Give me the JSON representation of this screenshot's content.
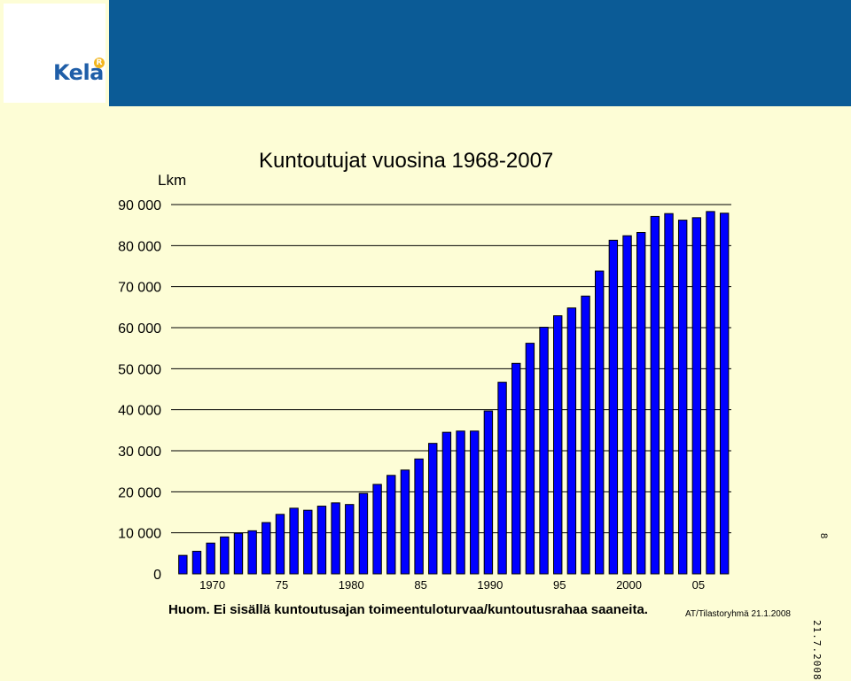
{
  "brand": {
    "logo_text": "Kela",
    "logo_mark": "R"
  },
  "colors": {
    "header_band": "#0b5b96",
    "background": "#fdfdd6",
    "bar_fill": "#0000ff",
    "bar_stroke": "#000000"
  },
  "footnote": "Huom. Ei sisällä kuntoutusajan toimeentuloturvaa/kuntoutusrahaa saaneita.",
  "credit": "AT/Tilastoryhmä 21.1.2008",
  "side_stamp": {
    "date": "21.7.2008",
    "page": "8"
  },
  "chart_data": {
    "type": "bar",
    "title": "Kuntoutujat vuosina 1968-2007",
    "ylabel": "Lkm",
    "xlabel": "",
    "ylim": [
      0,
      90000
    ],
    "yticks": [
      0,
      10000,
      20000,
      30000,
      40000,
      50000,
      60000,
      70000,
      80000,
      90000
    ],
    "ytick_labels": [
      "0",
      "10 000",
      "20 000",
      "30 000",
      "40 000",
      "50 000",
      "60 000",
      "70 000",
      "80 000",
      "90 000"
    ],
    "grid": true,
    "categories": [
      1968,
      1969,
      1970,
      1971,
      1972,
      1973,
      1974,
      1975,
      1976,
      1977,
      1978,
      1979,
      1980,
      1981,
      1982,
      1983,
      1984,
      1985,
      1986,
      1987,
      1988,
      1989,
      1990,
      1991,
      1992,
      1993,
      1994,
      1995,
      1996,
      1997,
      1998,
      1999,
      2000,
      2001,
      2002,
      2003,
      2004,
      2005,
      2006,
      2007
    ],
    "xtick_labels": [
      {
        "category": 1970,
        "label": "1970"
      },
      {
        "category": 1975,
        "label": "75"
      },
      {
        "category": 1980,
        "label": "1980"
      },
      {
        "category": 1985,
        "label": "85"
      },
      {
        "category": 1990,
        "label": "1990"
      },
      {
        "category": 1995,
        "label": "95"
      },
      {
        "category": 2000,
        "label": "2000"
      },
      {
        "category": 2005,
        "label": "05"
      }
    ],
    "values": [
      4500,
      5500,
      7500,
      9000,
      9900,
      10500,
      12500,
      14500,
      16000,
      15500,
      16500,
      17300,
      16900,
      19600,
      21800,
      24000,
      25300,
      28000,
      31800,
      34500,
      34800,
      34800,
      39700,
      46700,
      51300,
      56200,
      60100,
      62900,
      64800,
      67700,
      73800,
      81300,
      82400,
      83200,
      87100,
      87800,
      86200,
      86800,
      88300,
      87900
    ]
  }
}
